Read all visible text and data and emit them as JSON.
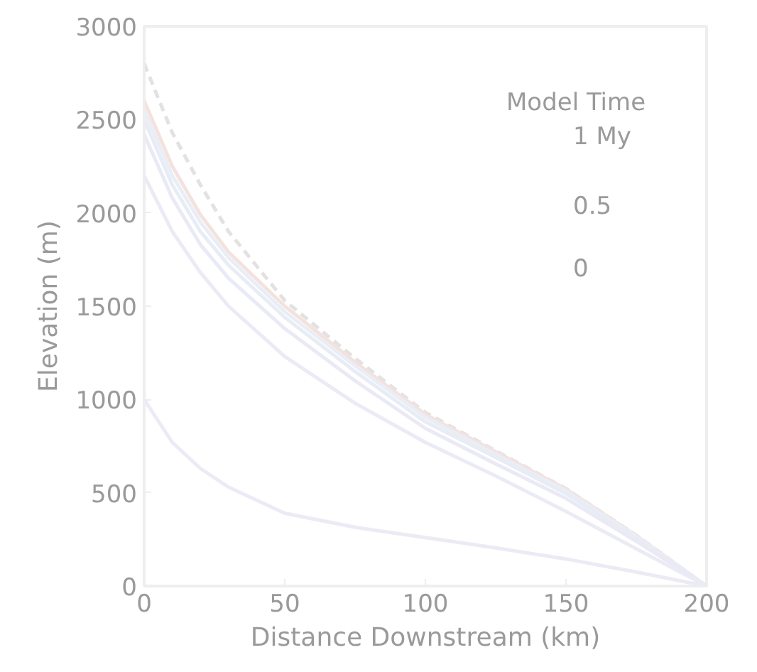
{
  "chart_data": {
    "type": "line",
    "xlabel": "Distance Downstream (km)",
    "ylabel": "Elevation (m)",
    "annotations": [
      "Model Time",
      "1 My",
      "0.5",
      "0"
    ],
    "x": [
      0,
      10,
      20,
      30,
      50,
      75,
      100,
      125,
      150,
      175,
      200
    ],
    "xlim": [
      0,
      200
    ],
    "xticks": [
      0,
      50,
      100,
      150,
      200
    ],
    "ylim": [
      0,
      3000
    ],
    "yticks": [
      0,
      500,
      1000,
      1500,
      2000,
      2500,
      3000
    ],
    "grid": false,
    "marker": "none",
    "series": [
      {
        "color": "#e2e2e2",
        "line_style": "dashed",
        "values": [
          2800,
          2430,
          2150,
          1900,
          1530,
          1220,
          930,
          725,
          522,
          272,
          0
        ]
      },
      {
        "color": "#f4e2df",
        "values": [
          2600,
          2250,
          1990,
          1790,
          1500,
          1200,
          920,
          720,
          520,
          270,
          0
        ]
      },
      {
        "color": "#e9eef6",
        "values": [
          2550,
          2200,
          1950,
          1760,
          1470,
          1180,
          905,
          705,
          510,
          265,
          0
        ]
      },
      {
        "color": "#e8ecf5",
        "values": [
          2500,
          2150,
          1900,
          1720,
          1440,
          1150,
          880,
          690,
          495,
          255,
          0
        ]
      },
      {
        "color": "#e9eaf5",
        "values": [
          2420,
          2080,
          1830,
          1650,
          1380,
          1100,
          845,
          655,
          470,
          240,
          0
        ]
      },
      {
        "color": "#ebebf5",
        "values": [
          2200,
          1900,
          1680,
          1500,
          1230,
          980,
          770,
          590,
          400,
          200,
          0
        ]
      },
      {
        "color": "#ebebf5",
        "values": [
          1000,
          770,
          630,
          530,
          390,
          315,
          260,
          205,
          145,
          75,
          0
        ]
      }
    ]
  }
}
